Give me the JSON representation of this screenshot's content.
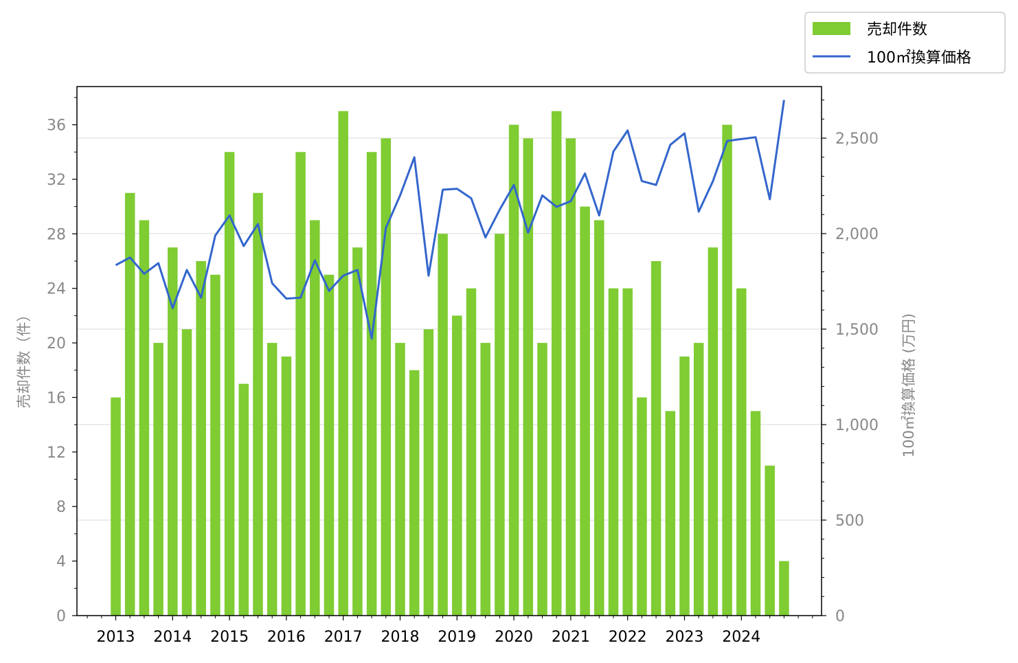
{
  "chart_data": {
    "type": "bar",
    "x": [
      "2013Q1",
      "2013Q2",
      "2013Q3",
      "2013Q4",
      "2014Q1",
      "2014Q2",
      "2014Q3",
      "2014Q4",
      "2015Q1",
      "2015Q2",
      "2015Q3",
      "2015Q4",
      "2016Q1",
      "2016Q2",
      "2016Q3",
      "2016Q4",
      "2017Q1",
      "2017Q2",
      "2017Q3",
      "2017Q4",
      "2018Q1",
      "2018Q2",
      "2018Q3",
      "2018Q4",
      "2019Q1",
      "2019Q2",
      "2019Q3",
      "2019Q4",
      "2020Q1",
      "2020Q2",
      "2020Q3",
      "2020Q4",
      "2021Q1",
      "2021Q2",
      "2021Q3",
      "2021Q4",
      "2022Q1",
      "2022Q2",
      "2022Q3",
      "2022Q4",
      "2023Q1",
      "2023Q2",
      "2023Q3",
      "2023Q4",
      "2024Q1",
      "2024Q2",
      "2024Q3",
      "2024Q4"
    ],
    "x_tick_labels": [
      "2013",
      "2014",
      "2015",
      "2016",
      "2017",
      "2018",
      "2019",
      "2020",
      "2021",
      "2022",
      "2023",
      "2024"
    ],
    "series": [
      {
        "name": "売却件数",
        "type": "bar",
        "axis": "left",
        "color": "#7fcc33",
        "values": [
          16,
          31,
          29,
          20,
          27,
          21,
          26,
          25,
          34,
          17,
          31,
          20,
          19,
          34,
          29,
          25,
          37,
          27,
          34,
          35,
          20,
          18,
          21,
          28,
          22,
          24,
          20,
          28,
          36,
          35,
          20,
          37,
          35,
          30,
          29,
          24,
          24,
          16,
          26,
          15,
          19,
          20,
          27,
          36,
          24,
          15,
          11,
          4
        ]
      },
      {
        "name": "100㎡換算価格",
        "type": "line",
        "axis": "right",
        "color": "#3366cc",
        "values": [
          1835,
          1875,
          1790,
          1845,
          1610,
          1810,
          1665,
          1990,
          2095,
          1935,
          2050,
          1740,
          1660,
          1665,
          1860,
          1700,
          1780,
          1810,
          1450,
          2030,
          2200,
          2400,
          1780,
          2230,
          2235,
          2185,
          1980,
          2125,
          2255,
          2005,
          2200,
          2140,
          2170,
          2315,
          2095,
          2430,
          2540,
          2275,
          2255,
          2465,
          2525,
          2115,
          2275,
          2485,
          2495,
          2505,
          2180,
          2700
        ]
      }
    ],
    "y_left": {
      "label": "売却件数（件）",
      "lim": [
        0,
        38.8
      ],
      "ticks": [
        0,
        4,
        8,
        12,
        16,
        20,
        24,
        28,
        32,
        36
      ]
    },
    "y_right": {
      "label": "100㎡換算価格 (万円)",
      "lim": [
        0,
        2770
      ],
      "ticks": [
        0,
        500,
        1000,
        1500,
        2000,
        2500
      ],
      "tick_labels": [
        "0",
        "500",
        "1,000",
        "1,500",
        "2,000",
        "2,500"
      ]
    },
    "legend": {
      "position": "top-right",
      "entries": [
        "売却件数",
        "100㎡換算価格"
      ]
    },
    "grid": "horizontal (right axis)"
  }
}
